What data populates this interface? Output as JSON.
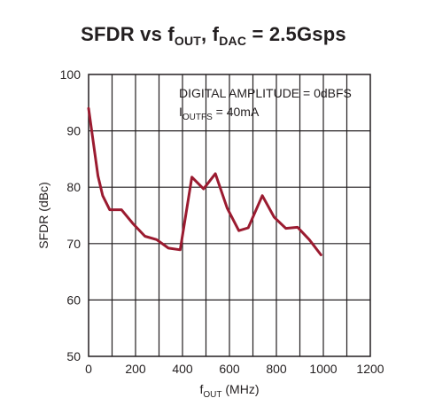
{
  "chart_data": {
    "type": "line",
    "title_parts": {
      "a": "SFDR vs f",
      "a_sub": "OUT",
      "b": ", f",
      "b_sub": "DAC",
      "c": " = 2.5Gsps"
    },
    "xlabel": {
      "main": "f",
      "sub": "OUT",
      "rest": " (MHz)"
    },
    "ylabel": "SFDR (dBc)",
    "xlim": [
      0,
      1200
    ],
    "ylim": [
      50,
      100
    ],
    "xticks": [
      0,
      200,
      400,
      600,
      800,
      1000,
      1200
    ],
    "yticks": [
      50,
      60,
      70,
      80,
      90,
      100
    ],
    "x_grid_step": 100,
    "grid": true,
    "annotations": {
      "line1": "DIGITAL AMPLITUDE = 0dBFS",
      "line2_main": "I",
      "line2_sub": "OUTFS",
      "line2_rest": " = 40mA"
    },
    "series": [
      {
        "color": "#9b1b30",
        "x": [
          0,
          40,
          60,
          90,
          140,
          190,
          240,
          290,
          340,
          390,
          440,
          490,
          540,
          590,
          640,
          680,
          740,
          790,
          840,
          890,
          940,
          990
        ],
        "y": [
          94,
          82,
          78.5,
          76,
          76,
          73.5,
          71.3,
          70.7,
          69.2,
          68.9,
          81.8,
          79.7,
          82.4,
          76.3,
          72.3,
          72.8,
          78.5,
          74.7,
          72.7,
          72.9,
          70.7,
          68
        ]
      }
    ]
  }
}
